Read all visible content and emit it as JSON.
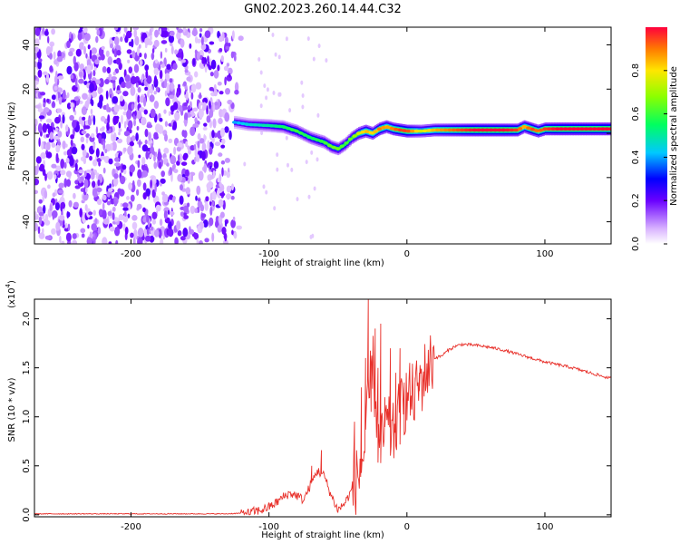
{
  "figure": {
    "title": "GN02.2023.260.14.44.C32"
  },
  "chart_data": [
    {
      "type": "heatmap",
      "name": "spectrogram",
      "title": "GN02.2023.260.14.44.C32",
      "xlabel": "Height of straight line (km)",
      "ylabel": "Frequency (Hz)",
      "xlim": [
        -270,
        148
      ],
      "ylim": [
        -50,
        48
      ],
      "xticks": [
        -200,
        -100,
        0,
        100
      ],
      "yticks": [
        -40,
        -20,
        0,
        20,
        40
      ],
      "noise_region_x": [
        -270,
        -120
      ],
      "ridge": {
        "x": [
          -125,
          -115,
          -100,
          -90,
          -80,
          -70,
          -60,
          -55,
          -50,
          -45,
          -40,
          -35,
          -30,
          -25,
          -20,
          -15,
          -10,
          -5,
          0,
          10,
          20,
          30,
          40,
          50,
          60,
          70,
          80,
          85,
          90,
          95,
          100,
          110,
          120,
          130,
          148
        ],
        "freq": [
          5,
          4,
          3.5,
          3,
          1,
          -2,
          -4,
          -6,
          -7,
          -5,
          -2,
          0,
          1,
          0,
          2,
          3,
          2,
          1.5,
          1,
          1,
          1.5,
          1.5,
          1.5,
          1.5,
          1.5,
          1.5,
          1.5,
          3,
          2,
          1,
          2,
          2,
          2,
          2,
          2
        ],
        "amplitude": [
          0.35,
          0.4,
          0.45,
          0.5,
          0.55,
          0.5,
          0.55,
          0.6,
          0.6,
          0.55,
          0.6,
          0.7,
          0.8,
          0.75,
          0.85,
          0.8,
          0.85,
          0.9,
          0.9,
          0.7,
          0.8,
          0.85,
          0.9,
          0.95,
          0.95,
          0.95,
          0.9,
          0.8,
          0.9,
          0.85,
          0.9,
          0.95,
          0.95,
          0.95,
          0.95
        ]
      },
      "colorbar": {
        "label": "Normalized spectral amplitude",
        "ticks": [
          "0.0",
          "0.2",
          "0.4",
          "0.6",
          "0.8"
        ],
        "range": [
          0,
          1
        ]
      }
    },
    {
      "type": "line",
      "name": "snr",
      "xlabel": "Height of straight line (km)",
      "ylabel": "SNR (10 * v/v)",
      "scale_label": "(x10",
      "scale_exponent": "4",
      "xlim": [
        -270,
        148
      ],
      "ylim": [
        -0.02,
        2.2
      ],
      "xticks": [
        -200,
        -100,
        0,
        100
      ],
      "yticks": [
        "0.0",
        "0.5",
        "1.0",
        "1.5",
        "2.0"
      ],
      "series": [
        {
          "color": "#e8302a",
          "x": [
            -270,
            -240,
            -200,
            -160,
            -130,
            -115,
            -105,
            -100,
            -95,
            -90,
            -85,
            -80,
            -75,
            -70,
            -65,
            -60,
            -55,
            -50,
            -45,
            -40,
            -35,
            -30,
            -28,
            -25,
            -20,
            -15,
            -10,
            -5,
            0,
            5,
            10,
            15,
            20,
            25,
            30,
            35,
            40,
            50,
            60,
            70,
            80,
            90,
            100,
            110,
            120,
            130,
            140,
            148
          ],
          "y": [
            0.01,
            0.01,
            0.01,
            0.01,
            0.01,
            0.02,
            0.05,
            0.08,
            0.12,
            0.18,
            0.22,
            0.2,
            0.15,
            0.3,
            0.45,
            0.4,
            0.2,
            0.05,
            0.12,
            0.25,
            0.4,
            0.7,
            1.1,
            1.6,
            0.6,
            0.9,
            0.8,
            1.05,
            1.2,
            1.2,
            1.35,
            1.5,
            1.6,
            1.62,
            1.68,
            1.72,
            1.74,
            1.73,
            1.71,
            1.68,
            1.64,
            1.6,
            1.56,
            1.53,
            1.5,
            1.46,
            1.42,
            1.39
          ]
        }
      ],
      "spikes": [
        {
          "x": -69,
          "y": 0.5
        },
        {
          "x": -62,
          "y": 0.66
        },
        {
          "x": -38,
          "y": 0.95
        },
        {
          "x": -33,
          "y": 1.3
        },
        {
          "x": -30,
          "y": 1.6
        },
        {
          "x": -28,
          "y": 2.2
        },
        {
          "x": -26,
          "y": 1.05
        },
        {
          "x": -23,
          "y": 1.9
        },
        {
          "x": -21,
          "y": 1.5
        },
        {
          "x": -19,
          "y": 1.95
        },
        {
          "x": -16,
          "y": 1.2
        },
        {
          "x": -12,
          "y": 1.7
        },
        {
          "x": -8,
          "y": 1.45
        },
        {
          "x": -5,
          "y": 1.7
        },
        {
          "x": -2,
          "y": 1.35
        },
        {
          "x": 2,
          "y": 1.55
        },
        {
          "x": 6,
          "y": 1.4
        },
        {
          "x": 9,
          "y": 1.45
        }
      ]
    }
  ]
}
